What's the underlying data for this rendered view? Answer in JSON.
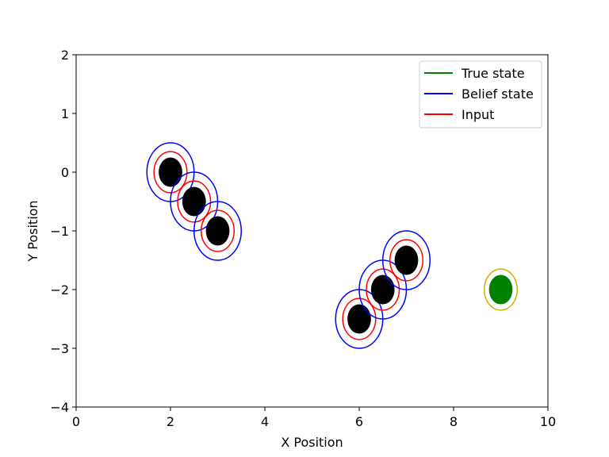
{
  "chart_data": {
    "type": "scatter",
    "xlabel": "X Position",
    "ylabel": "Y Position",
    "xlim": [
      0,
      10
    ],
    "ylim": [
      -4,
      2
    ],
    "x_ticks": [
      0,
      2,
      4,
      6,
      8,
      10
    ],
    "x_tick_labels": [
      "0",
      "2",
      "4",
      "6",
      "8",
      "10"
    ],
    "y_ticks": [
      -4,
      -3,
      -2,
      -1,
      0,
      1,
      2
    ],
    "y_tick_labels": [
      "−4",
      "−3",
      "−2",
      "−1",
      "0",
      "1",
      "2"
    ],
    "grid": false,
    "legend_position": "top-right",
    "legend": [
      {
        "label": "True state",
        "color": "#008000"
      },
      {
        "label": "Belief state",
        "color": "#0000ff"
      },
      {
        "label": "Input",
        "color": "#ff0000"
      }
    ],
    "objects": [
      {
        "x": 2.0,
        "y": 0.0,
        "kind": "obstacle",
        "rx": 0.25,
        "ry": 0.25,
        "input_rx": 0.35,
        "input_ry": 0.35,
        "belief_rx": 0.5,
        "belief_ry": 0.5
      },
      {
        "x": 2.5,
        "y": -0.5,
        "kind": "obstacle",
        "rx": 0.25,
        "ry": 0.25,
        "input_rx": 0.35,
        "input_ry": 0.35,
        "belief_rx": 0.5,
        "belief_ry": 0.5
      },
      {
        "x": 3.0,
        "y": -1.0,
        "kind": "obstacle",
        "rx": 0.25,
        "ry": 0.25,
        "input_rx": 0.35,
        "input_ry": 0.35,
        "belief_rx": 0.5,
        "belief_ry": 0.5
      },
      {
        "x": 6.0,
        "y": -2.5,
        "kind": "obstacle",
        "rx": 0.25,
        "ry": 0.25,
        "input_rx": 0.35,
        "input_ry": 0.35,
        "belief_rx": 0.5,
        "belief_ry": 0.5
      },
      {
        "x": 6.5,
        "y": -2.0,
        "kind": "obstacle",
        "rx": 0.25,
        "ry": 0.25,
        "input_rx": 0.35,
        "input_ry": 0.35,
        "belief_rx": 0.5,
        "belief_ry": 0.5
      },
      {
        "x": 7.0,
        "y": -1.5,
        "kind": "obstacle",
        "rx": 0.25,
        "ry": 0.25,
        "input_rx": 0.35,
        "input_ry": 0.35,
        "belief_rx": 0.5,
        "belief_ry": 0.5
      },
      {
        "x": 9.0,
        "y": -2.0,
        "kind": "target",
        "rx": 0.25,
        "ry": 0.25,
        "outer_rx": 0.35,
        "outer_ry": 0.35
      }
    ],
    "colors": {
      "obstacle_fill": "#000000",
      "input": "#ff0000",
      "belief": "#0000ff",
      "target_fill": "#008000",
      "target_outline": "#ccb000"
    }
  }
}
